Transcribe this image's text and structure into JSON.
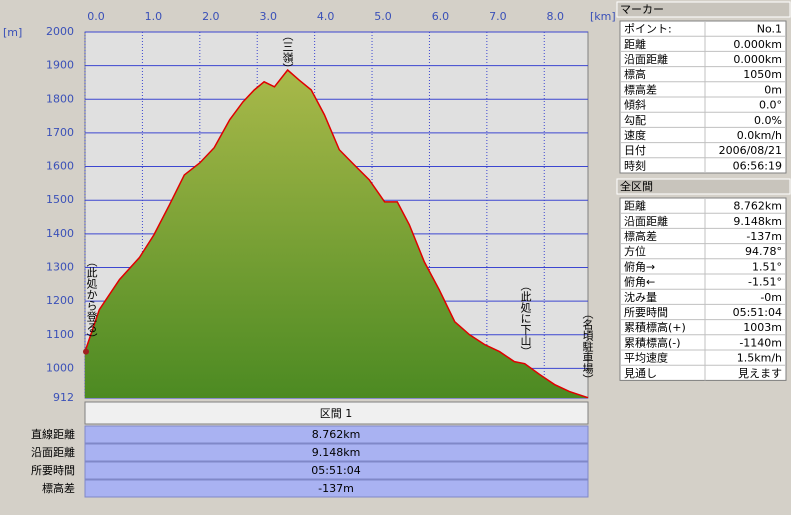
{
  "chart_data": {
    "type": "area",
    "xlabel": "[km]",
    "ylabel": "[m]",
    "x": [
      0,
      0.25,
      0.6,
      0.95,
      1.2,
      1.47,
      1.73,
      2.0,
      2.25,
      2.52,
      2.75,
      2.95,
      3.12,
      3.3,
      3.53,
      3.73,
      3.94,
      4.17,
      4.43,
      4.69,
      4.95,
      5.22,
      5.44,
      5.65,
      5.91,
      6.17,
      6.44,
      6.7,
      6.96,
      7.22,
      7.48,
      7.66,
      7.92,
      8.18,
      8.44,
      8.762
    ],
    "values": [
      1050,
      1175,
      1264,
      1330,
      1397,
      1486,
      1575,
      1611,
      1656,
      1739,
      1792,
      1828,
      1852,
      1837,
      1887,
      1857,
      1828,
      1754,
      1650,
      1605,
      1561,
      1495,
      1495,
      1427,
      1317,
      1234,
      1139,
      1100,
      1071,
      1050,
      1020,
      1014,
      982,
      952,
      931,
      913
    ],
    "color": "#e00000",
    "fill_top": "#a9b94a",
    "fill_bottom": "#4c8a22",
    "grid": true,
    "xlim": [
      0,
      8.762
    ],
    "ylim": [
      912,
      2000
    ],
    "xticks": [
      {
        "value": 0,
        "label": "0.0"
      },
      {
        "value": 1,
        "label": "1.0"
      },
      {
        "value": 2,
        "label": "2.0"
      },
      {
        "value": 3,
        "label": "3.0"
      },
      {
        "value": 4,
        "label": "4.0"
      },
      {
        "value": 5,
        "label": "5.0"
      },
      {
        "value": 6,
        "label": "6.0"
      },
      {
        "value": 7,
        "label": "7.0"
      },
      {
        "value": 8,
        "label": "8.0"
      }
    ],
    "yticks": [
      912,
      1000,
      1100,
      1200,
      1300,
      1400,
      1500,
      1600,
      1700,
      1800,
      1900,
      2000
    ],
    "annotations": [
      "（此処から登る）",
      "（三嶺）",
      "（此処に下山）",
      "（名頃駐車場）"
    ]
  },
  "marker": {
    "title": "マーカー",
    "rows": [
      [
        "ポイント:",
        "No.1"
      ],
      [
        "距離",
        "0.000km"
      ],
      [
        "沿面距離",
        "0.000km"
      ],
      [
        "標高",
        "1050m"
      ],
      [
        "標高差",
        "0m"
      ],
      [
        "傾斜",
        "0.0°"
      ],
      [
        "勾配",
        "0.0%"
      ],
      [
        "速度",
        "0.0km/h"
      ],
      [
        "日付",
        "2006/08/21"
      ],
      [
        "時刻",
        "06:56:19"
      ]
    ]
  },
  "total": {
    "title": "全区間",
    "rows": [
      [
        "距離",
        "8.762km"
      ],
      [
        "沿面距離",
        "9.148km"
      ],
      [
        "標高差",
        "-137m"
      ],
      [
        "方位",
        "94.78°"
      ],
      [
        "俯角→",
        "1.51°"
      ],
      [
        "俯角←",
        "-1.51°"
      ],
      [
        "沈み量",
        "-0m"
      ],
      [
        "所要時間",
        "05:51:04"
      ],
      [
        "累積標高(+)",
        "1003m"
      ],
      [
        "累積標高(-)",
        "-1140m"
      ],
      [
        "平均速度",
        "1.5km/h"
      ],
      [
        "見通し",
        "見えます"
      ]
    ]
  },
  "segment": {
    "title": "区間 1",
    "rows": [
      [
        "直線距離",
        "8.762km"
      ],
      [
        "沿面距離",
        "9.148km"
      ],
      [
        "所要時間",
        "05:51:04"
      ],
      [
        "標高差",
        "-137m"
      ]
    ]
  }
}
